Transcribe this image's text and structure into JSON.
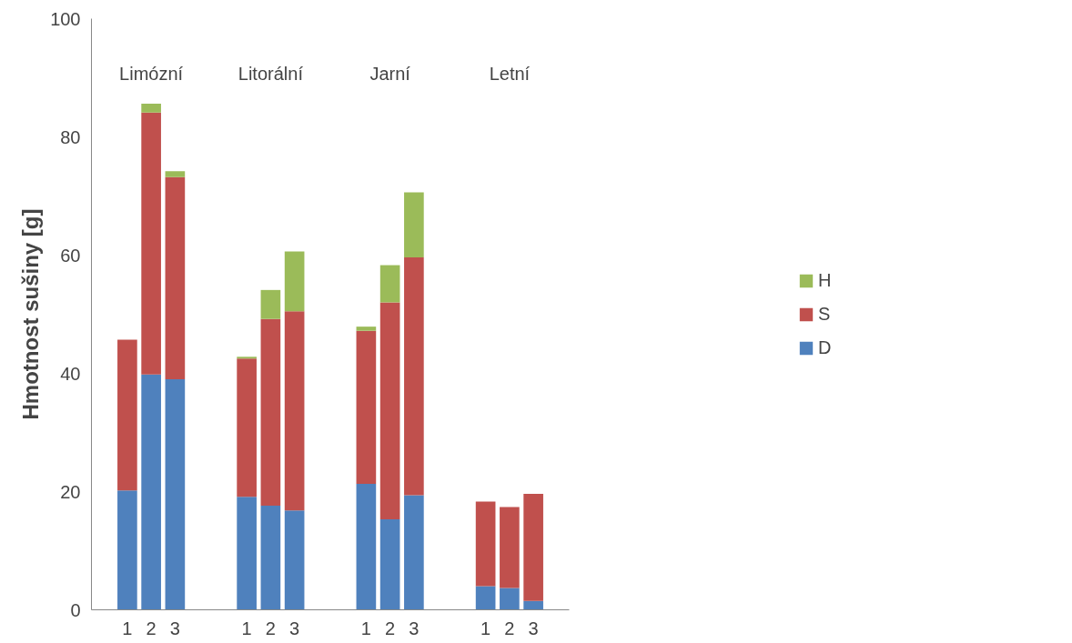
{
  "chart_data": {
    "type": "bar",
    "stacked": true,
    "ylabel": "Hmotnost sušiny [g]",
    "categories": [
      "1",
      "2",
      "3",
      "1",
      "2",
      "3",
      "1",
      "2",
      "3",
      "1",
      "2",
      "3"
    ],
    "annotations": [
      "Limózní",
      "Litorální",
      "Jarní",
      "Letní"
    ],
    "series": [
      {
        "name": "D",
        "color": "#4f81bd",
        "values": [
          20.2,
          39.8,
          39.0,
          19.1,
          17.6,
          16.8,
          21.3,
          15.3,
          19.4,
          4.0,
          3.7,
          1.5
        ]
      },
      {
        "name": "S",
        "color": "#c0504d",
        "values": [
          25.5,
          44.3,
          34.2,
          23.4,
          31.6,
          33.7,
          25.9,
          36.7,
          40.2,
          14.3,
          13.7,
          18.1
        ]
      },
      {
        "name": "H",
        "color": "#9bbb59",
        "values": [
          0,
          1.5,
          1.0,
          0.3,
          4.9,
          10.1,
          0.7,
          6.3,
          11.0,
          0,
          0,
          0
        ]
      }
    ],
    "ylim": [
      0,
      100
    ],
    "yticks": [
      0,
      20,
      40,
      60,
      80,
      100
    ],
    "grid": false,
    "legend": "right"
  }
}
